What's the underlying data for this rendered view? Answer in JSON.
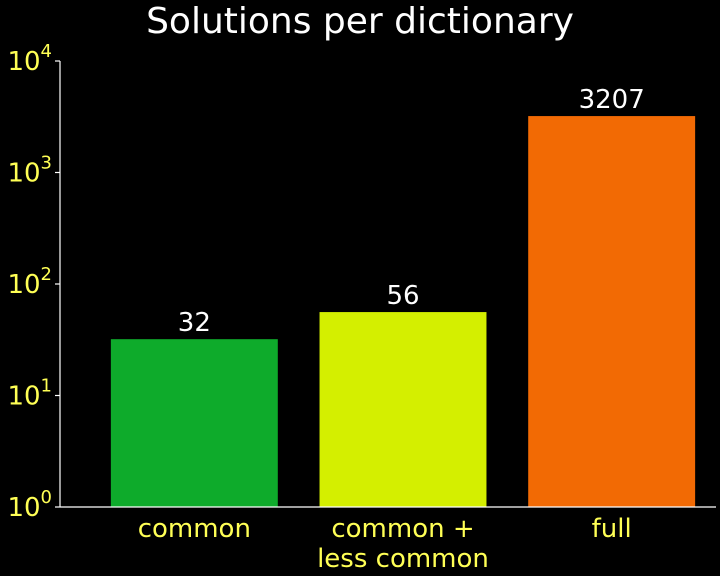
{
  "chart_data": {
    "type": "bar",
    "title": "Solutions per dictionary",
    "categories": [
      [
        "common"
      ],
      [
        "common +",
        "less common"
      ],
      [
        "full"
      ]
    ],
    "values": [
      32,
      56,
      3207
    ],
    "value_labels": [
      "32",
      "56",
      "3207"
    ],
    "bar_colors": [
      "#0eab2b",
      "#d4ef00",
      "#f26a04"
    ],
    "yscale": "log",
    "ylim": [
      1,
      10000
    ],
    "yticks": [
      {
        "value": 1,
        "base": "10",
        "exp": "0"
      },
      {
        "value": 10,
        "base": "10",
        "exp": "1"
      },
      {
        "value": 100,
        "base": "10",
        "exp": "2"
      },
      {
        "value": 1000,
        "base": "10",
        "exp": "3"
      },
      {
        "value": 10000,
        "base": "10",
        "exp": "4"
      }
    ],
    "xlabel": "",
    "ylabel": "",
    "grid": false,
    "legend": false
  },
  "colors": {
    "background": "#000000",
    "title": "#ffffff",
    "tick_labels": "#ffff55",
    "axis_line": "#ffffff",
    "value_labels": "#ffffff"
  }
}
